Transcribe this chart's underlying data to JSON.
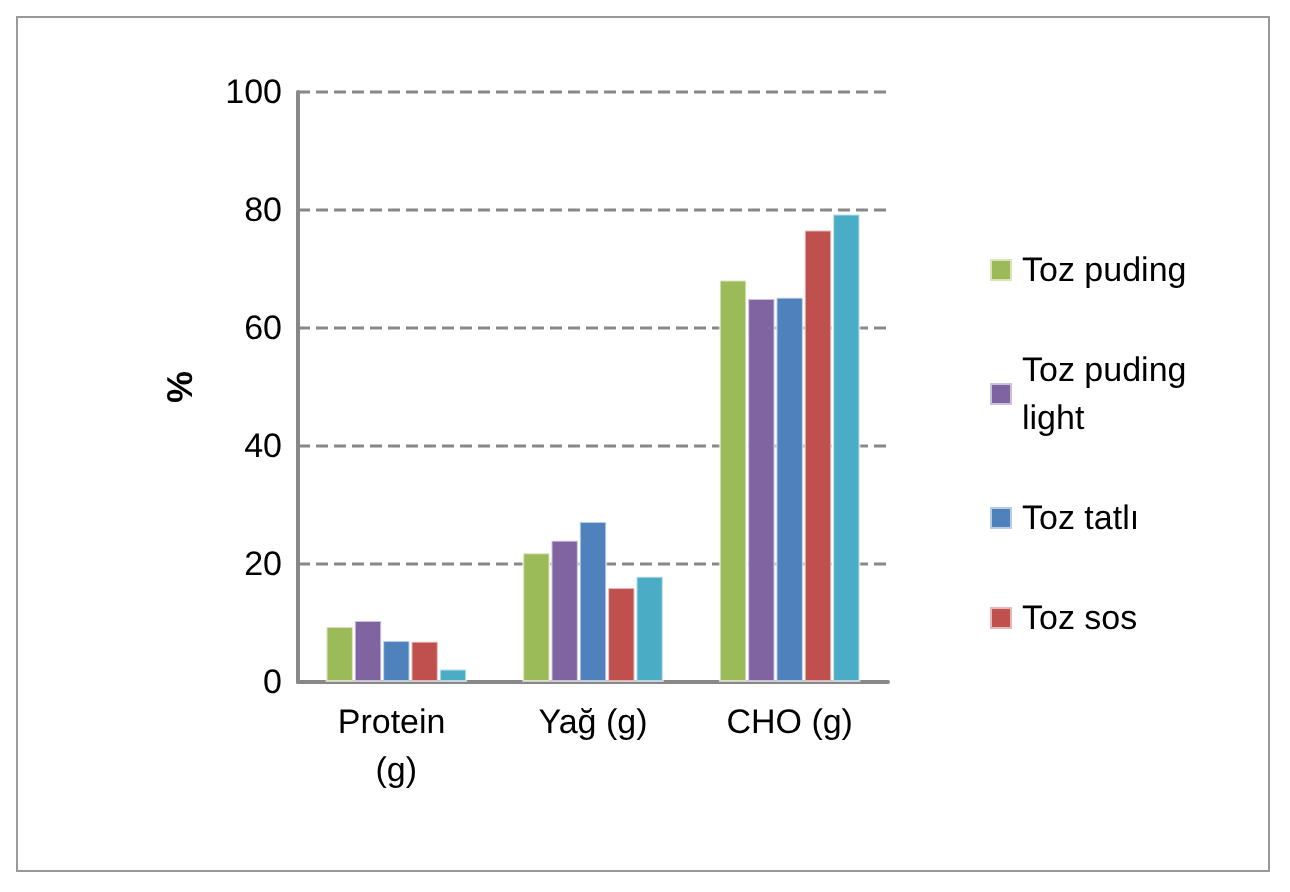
{
  "chart_data": {
    "type": "bar",
    "ylabel": "%",
    "categories": [
      "Protein (g)",
      "Yağ (g)",
      "CHO (g)"
    ],
    "series": [
      {
        "name": "Toz puding",
        "color": "#9bbb59",
        "values": [
          9.5,
          22.0,
          68.2
        ]
      },
      {
        "name": "Toz puding light",
        "color": "#8064a2",
        "values": [
          10.5,
          24.1,
          65.1
        ]
      },
      {
        "name": "Toz tatlı",
        "color": "#4f81bd",
        "values": [
          7.1,
          27.3,
          65.3
        ]
      },
      {
        "name": "Toz sos",
        "color": "#c0504d",
        "values": [
          7.0,
          16.1,
          76.7
        ]
      },
      {
        "color": "#4bacc6",
        "values": [
          2.3,
          18.0,
          79.4
        ]
      }
    ],
    "ylim": [
      0,
      100
    ],
    "yticks": [
      0,
      20,
      40,
      60,
      80,
      100
    ],
    "grid": "y",
    "legend": "right"
  }
}
